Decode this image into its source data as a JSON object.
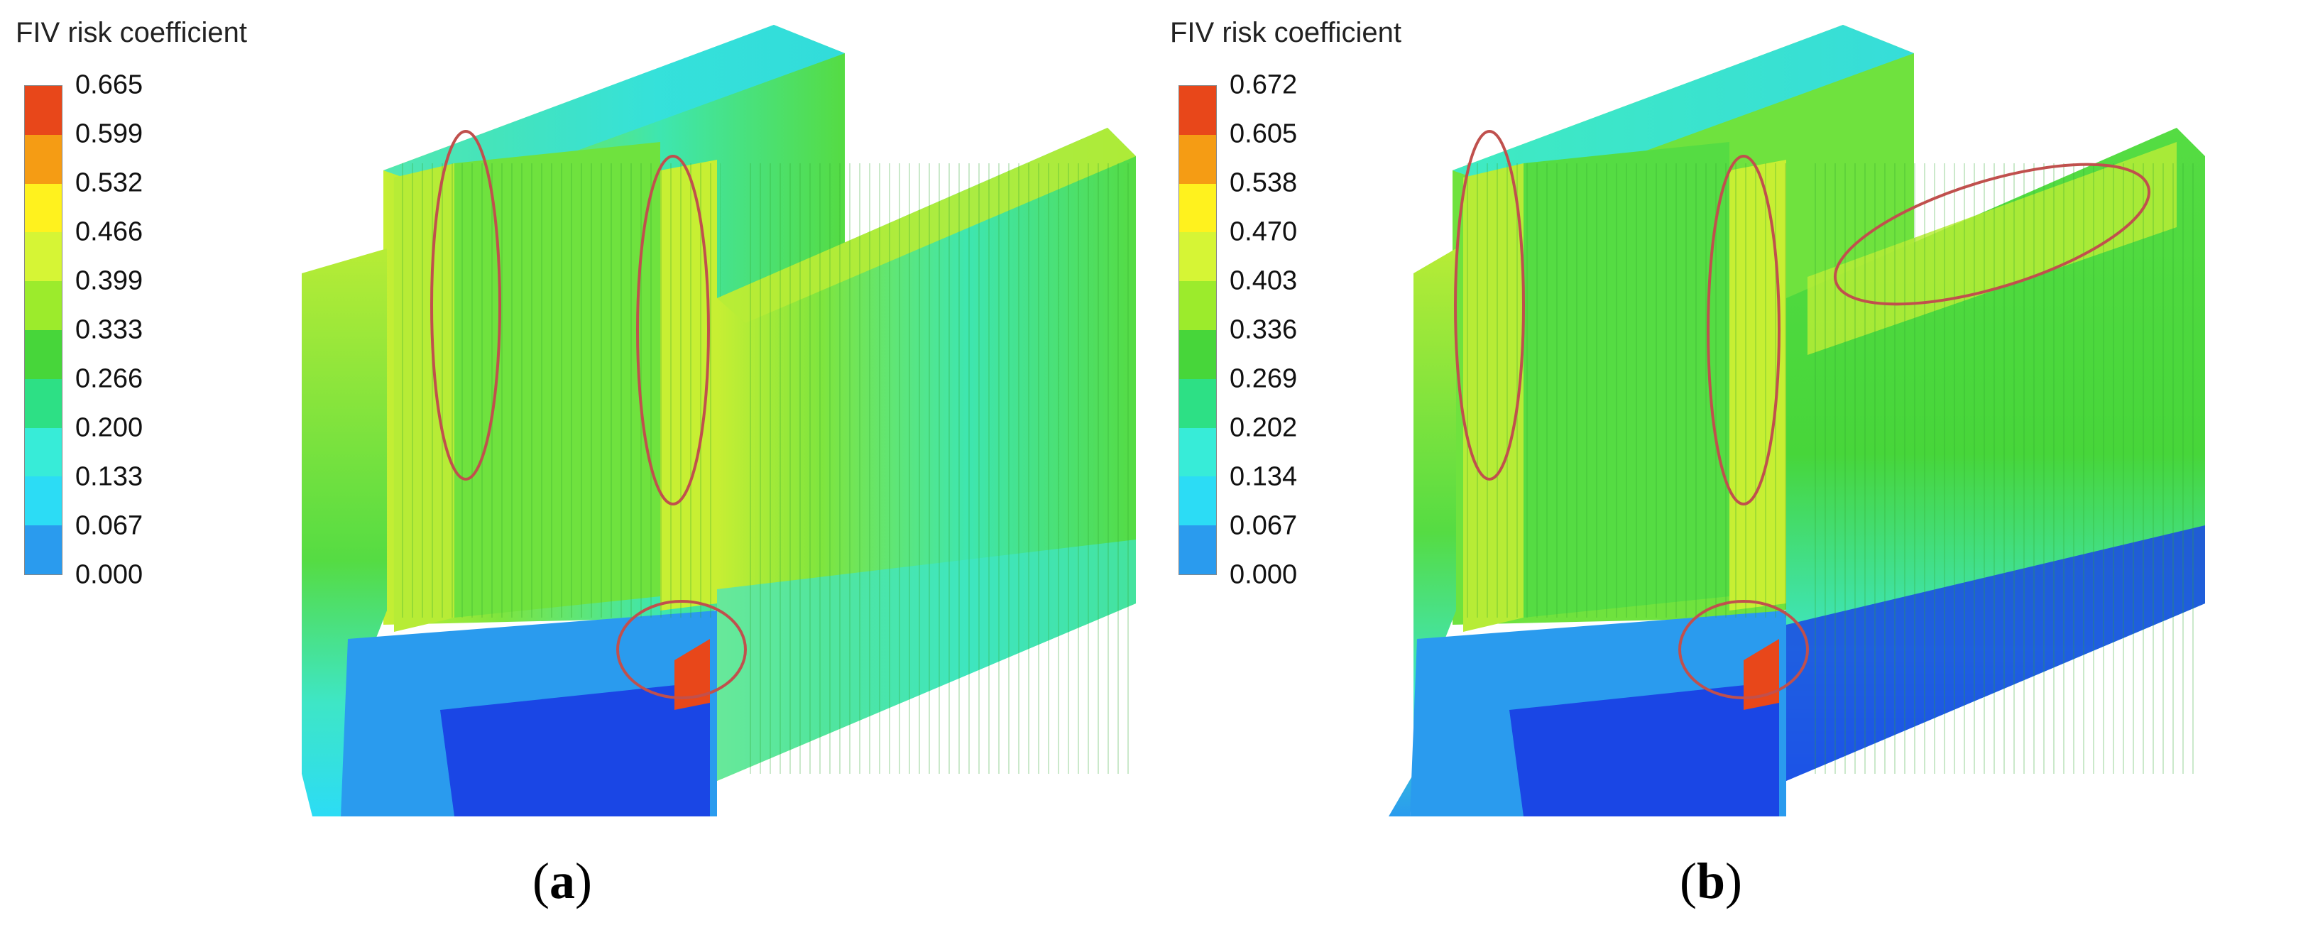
{
  "panels": [
    {
      "id": "a",
      "legend_title": "FIV risk coefficient",
      "legend_ticks": [
        "0.665",
        "0.599",
        "0.532",
        "0.466",
        "0.399",
        "0.333",
        "0.266",
        "0.200",
        "0.133",
        "0.067",
        "0.000"
      ],
      "caption_open": "(",
      "caption_letter": "a",
      "caption_close": ")"
    },
    {
      "id": "b",
      "legend_title": "FIV risk coefficient",
      "legend_ticks": [
        "0.672",
        "0.605",
        "0.538",
        "0.470",
        "0.403",
        "0.336",
        "0.269",
        "0.202",
        "0.134",
        "0.067",
        "0.000"
      ],
      "caption_open": "(",
      "caption_letter": "b",
      "caption_close": ")"
    }
  ],
  "colorscale": [
    "#e8471a",
    "#f59c14",
    "#fff21e",
    "#d6f535",
    "#9ceb2c",
    "#47d63a",
    "#2de085",
    "#37ecd8",
    "#2cdcf5",
    "#2a9bee",
    "#1a46e5"
  ],
  "colors": {
    "highlight_ellipse": "#c0504d",
    "body_green": "#55dc43",
    "body_yellowgreen": "#b7ec36",
    "body_cyan": "#3ee6c6",
    "body_blue": "#1c4fe0",
    "hotspot": "#e8471a"
  }
}
